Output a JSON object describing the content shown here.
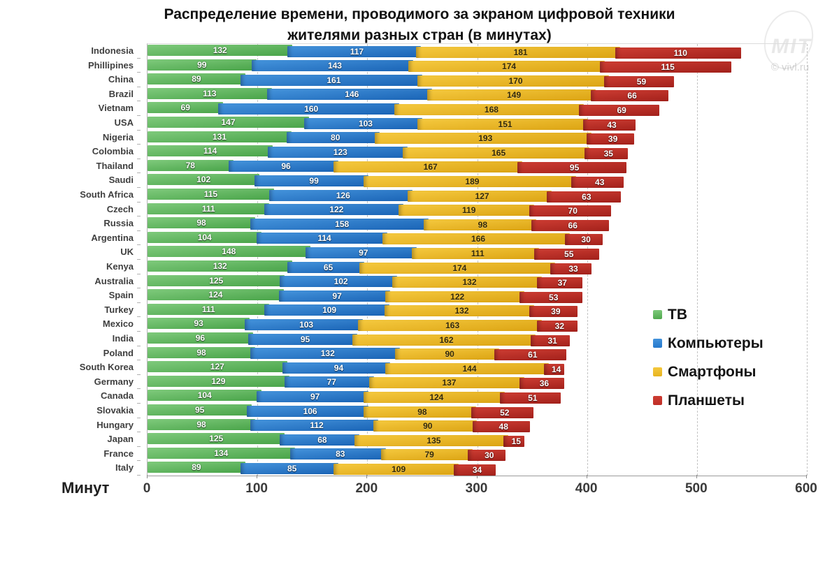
{
  "title": {
    "line1": "Распределение времени, проводимого за экраном цифровой техники",
    "line2": "жителями разных стран (в минутах)"
  },
  "watermark": {
    "logo_text": "MIT",
    "credit": "© vivl.ru"
  },
  "axis": {
    "xlabel": "Минут"
  },
  "chart_data": {
    "type": "bar",
    "orientation": "horizontal-stacked",
    "title": "Распределение времени, проводимого за экраном цифровой техники жителями разных стран (в минутах)",
    "xlabel": "Минут",
    "ylabel": "",
    "xlim": [
      0,
      600
    ],
    "xticks": [
      0,
      100,
      200,
      300,
      400,
      500,
      600
    ],
    "grid": "dashed-vertical",
    "legend_position": "right-middle",
    "categories": [
      "Indonesia",
      "Phillipines",
      "China",
      "Brazil",
      "Vietnam",
      "USA",
      "Nigeria",
      "Colombia",
      "Thailand",
      "Saudi",
      "South Africa",
      "Czech",
      "Russia",
      "Argentina",
      "UK",
      "Kenya",
      "Australia",
      "Spain",
      "Turkey",
      "Mexico",
      "India",
      "Poland",
      "South Korea",
      "Germany",
      "Canada",
      "Slovakia",
      "Hungary",
      "Japan",
      "France",
      "Italy"
    ],
    "series": [
      {
        "name": "ТВ",
        "color_top": "#7fca7c",
        "color_bottom": "#49a449",
        "legend_color": "#4ea84c",
        "label_style": "light",
        "values": [
          132,
          99,
          89,
          113,
          69,
          147,
          131,
          114,
          78,
          102,
          115,
          111,
          98,
          104,
          148,
          132,
          125,
          124,
          111,
          93,
          96,
          98,
          127,
          129,
          104,
          95,
          98,
          125,
          134,
          89
        ]
      },
      {
        "name": "Компьютеры",
        "color_top": "#4594dc",
        "color_bottom": "#1a64b6",
        "legend_color": "#2478cc",
        "label_style": "light",
        "values": [
          117,
          143,
          161,
          146,
          160,
          103,
          80,
          123,
          96,
          99,
          126,
          122,
          158,
          114,
          97,
          65,
          102,
          97,
          109,
          103,
          95,
          132,
          94,
          77,
          97,
          106,
          112,
          68,
          83,
          85
        ]
      },
      {
        "name": "Смартфоны",
        "color_top": "#f5c93f",
        "color_bottom": "#dca413",
        "legend_color": "#e6b31e",
        "label_style": "dark",
        "values": [
          181,
          174,
          170,
          149,
          168,
          151,
          193,
          165,
          167,
          189,
          127,
          119,
          98,
          166,
          111,
          174,
          132,
          122,
          132,
          163,
          162,
          90,
          144,
          137,
          124,
          98,
          90,
          135,
          79,
          109
        ]
      },
      {
        "name": "Планшеты",
        "color_top": "#cd3d33",
        "color_bottom": "#a3211b",
        "legend_color": "#bf2e26",
        "label_style": "light",
        "values": [
          110,
          115,
          59,
          66,
          69,
          43,
          39,
          35,
          95,
          43,
          63,
          70,
          66,
          30,
          55,
          33,
          37,
          53,
          39,
          32,
          31,
          61,
          14,
          36,
          51,
          52,
          48,
          15,
          30,
          34
        ]
      }
    ]
  }
}
